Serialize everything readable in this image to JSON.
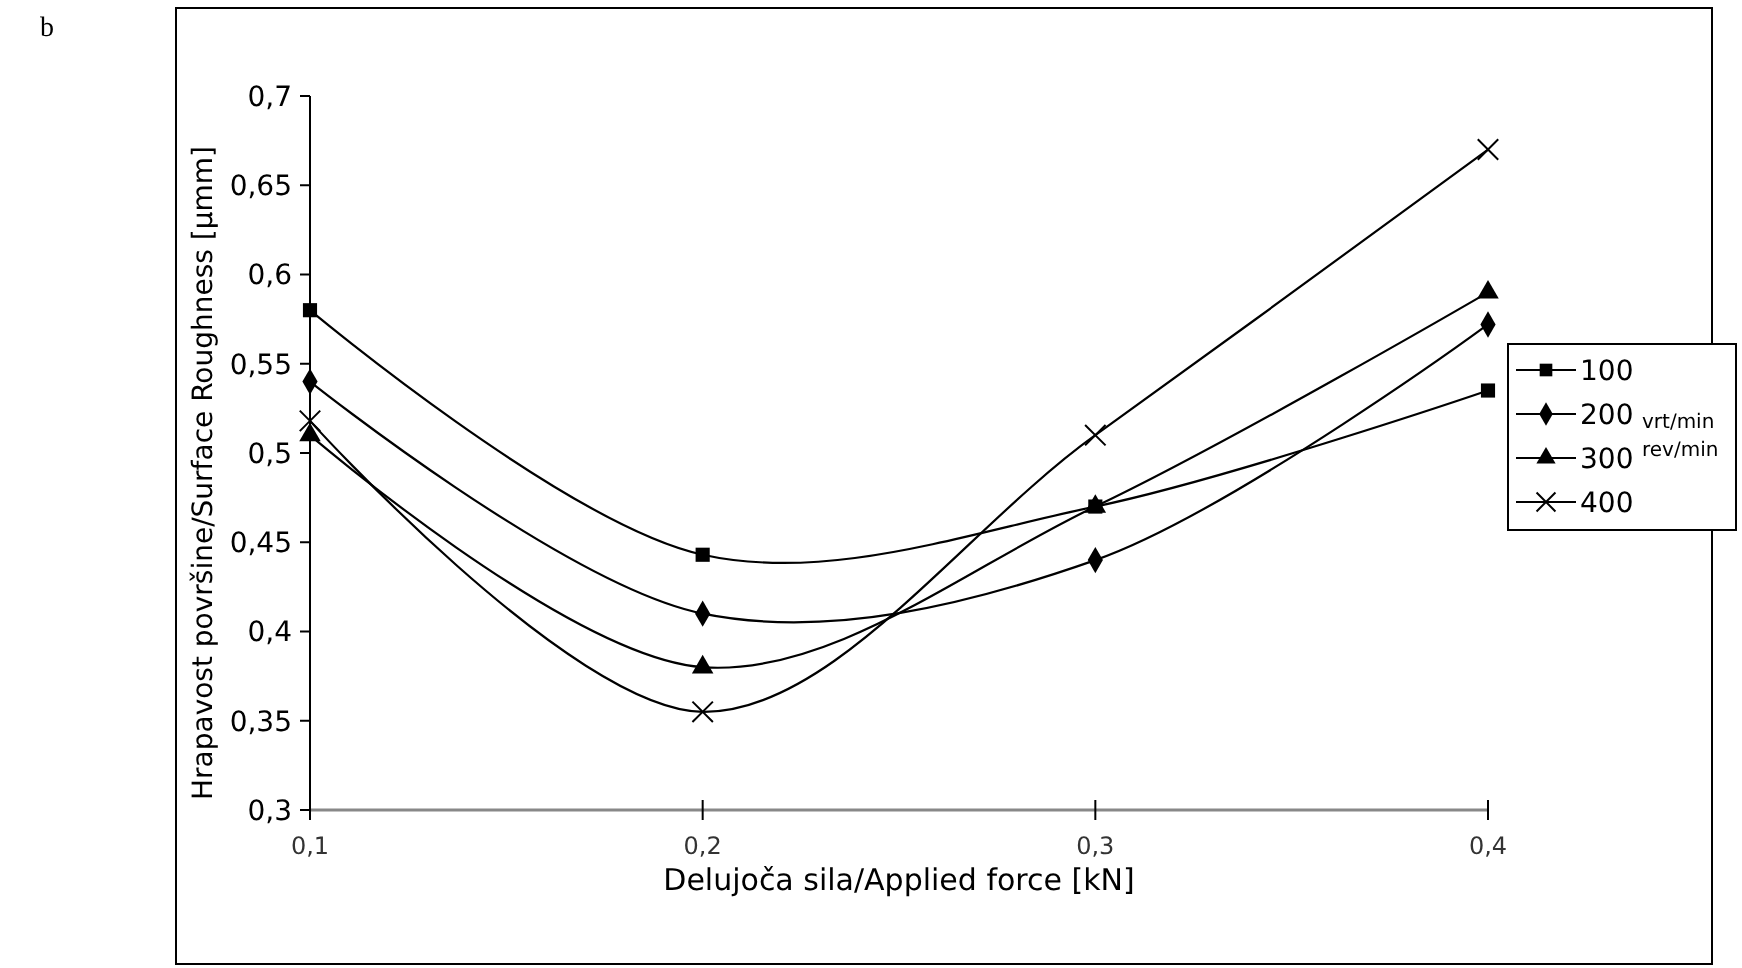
{
  "chart_data": {
    "type": "line",
    "xlabel": "Delujoča sila/Applied force [kN]",
    "ylabel": "Hrapavost površine/Surface Roughness [µmm]",
    "legend_title": "vrt/min rev/min",
    "annotations": [
      "b"
    ],
    "x": [
      0.1,
      0.2,
      0.3,
      0.4
    ],
    "series": [
      {
        "name": "100",
        "color": "#000000",
        "marker": "square",
        "values": [
          0.58,
          0.443,
          0.47,
          0.535
        ]
      },
      {
        "name": "200",
        "color": "#000000",
        "marker": "diamond",
        "values": [
          0.54,
          0.41,
          0.44,
          0.572
        ]
      },
      {
        "name": "300",
        "color": "#000000",
        "marker": "triangle",
        "values": [
          0.51,
          0.38,
          0.47,
          0.59
        ]
      },
      {
        "name": "400",
        "color": "#000000",
        "marker": "cross",
        "values": [
          0.518,
          0.355,
          0.51,
          0.67
        ]
      }
    ],
    "xlim": [
      0.1,
      0.4
    ],
    "xticks": [
      {
        "value": 0.1,
        "label": "0,1"
      },
      {
        "value": 0.2,
        "label": "0,2"
      },
      {
        "value": 0.3,
        "label": "0,3"
      },
      {
        "value": 0.4,
        "label": "0,4"
      }
    ],
    "ylim": [
      0.3,
      0.7
    ],
    "yticks": [
      {
        "value": 0.3,
        "label": "0,3"
      },
      {
        "value": 0.35,
        "label": "0,35"
      },
      {
        "value": 0.4,
        "label": "0,4"
      },
      {
        "value": 0.45,
        "label": "0,45"
      },
      {
        "value": 0.5,
        "label": "0,5"
      },
      {
        "value": 0.55,
        "label": "0,55"
      },
      {
        "value": 0.6,
        "label": "0,6"
      },
      {
        "value": 0.65,
        "label": "0,65"
      },
      {
        "value": 0.7,
        "label": "0,7"
      }
    ],
    "grid": false,
    "legend": "right",
    "line_style": "solid"
  }
}
